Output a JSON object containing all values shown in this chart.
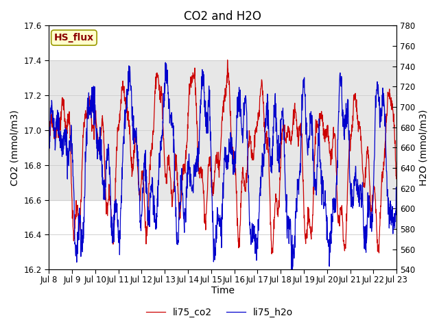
{
  "title": "CO2 and H2O",
  "xlabel": "Time",
  "ylabel_left": "CO2 (mmol/m3)",
  "ylabel_right": "H2O (mmol/m3)",
  "ylim_left": [
    16.2,
    17.6
  ],
  "ylim_right": [
    540,
    780
  ],
  "yticks_left": [
    16.2,
    16.4,
    16.6,
    16.8,
    17.0,
    17.2,
    17.4,
    17.6
  ],
  "yticks_right": [
    540,
    560,
    580,
    600,
    620,
    640,
    660,
    680,
    700,
    720,
    740,
    760,
    780
  ],
  "xtick_labels": [
    "Jul 8",
    "Jul 9",
    "Jul 10",
    "Jul 11",
    "Jul 12",
    "Jul 13",
    "Jul 14",
    "Jul 15",
    "Jul 16",
    "Jul 17",
    "Jul 18",
    "Jul 19",
    "Jul 20",
    "Jul 21",
    "Jul 22",
    "Jul 23"
  ],
  "line_color_co2": "#cc0000",
  "line_color_h2o": "#0000cc",
  "legend_label_co2": "li75_co2",
  "legend_label_h2o": "li75_h2o",
  "annotation_text": "HS_flux",
  "annotation_color": "#8b0000",
  "annotation_bg": "#ffffcc",
  "annotation_border": "#999900",
  "band_color": "#d8d8d8",
  "band_alpha": 0.6,
  "band_ylim": [
    16.6,
    17.4
  ],
  "background_color": "#ffffff",
  "grid_color": "#d0d0d0",
  "title_fontsize": 12,
  "label_fontsize": 10,
  "tick_fontsize": 8.5,
  "legend_fontsize": 10
}
